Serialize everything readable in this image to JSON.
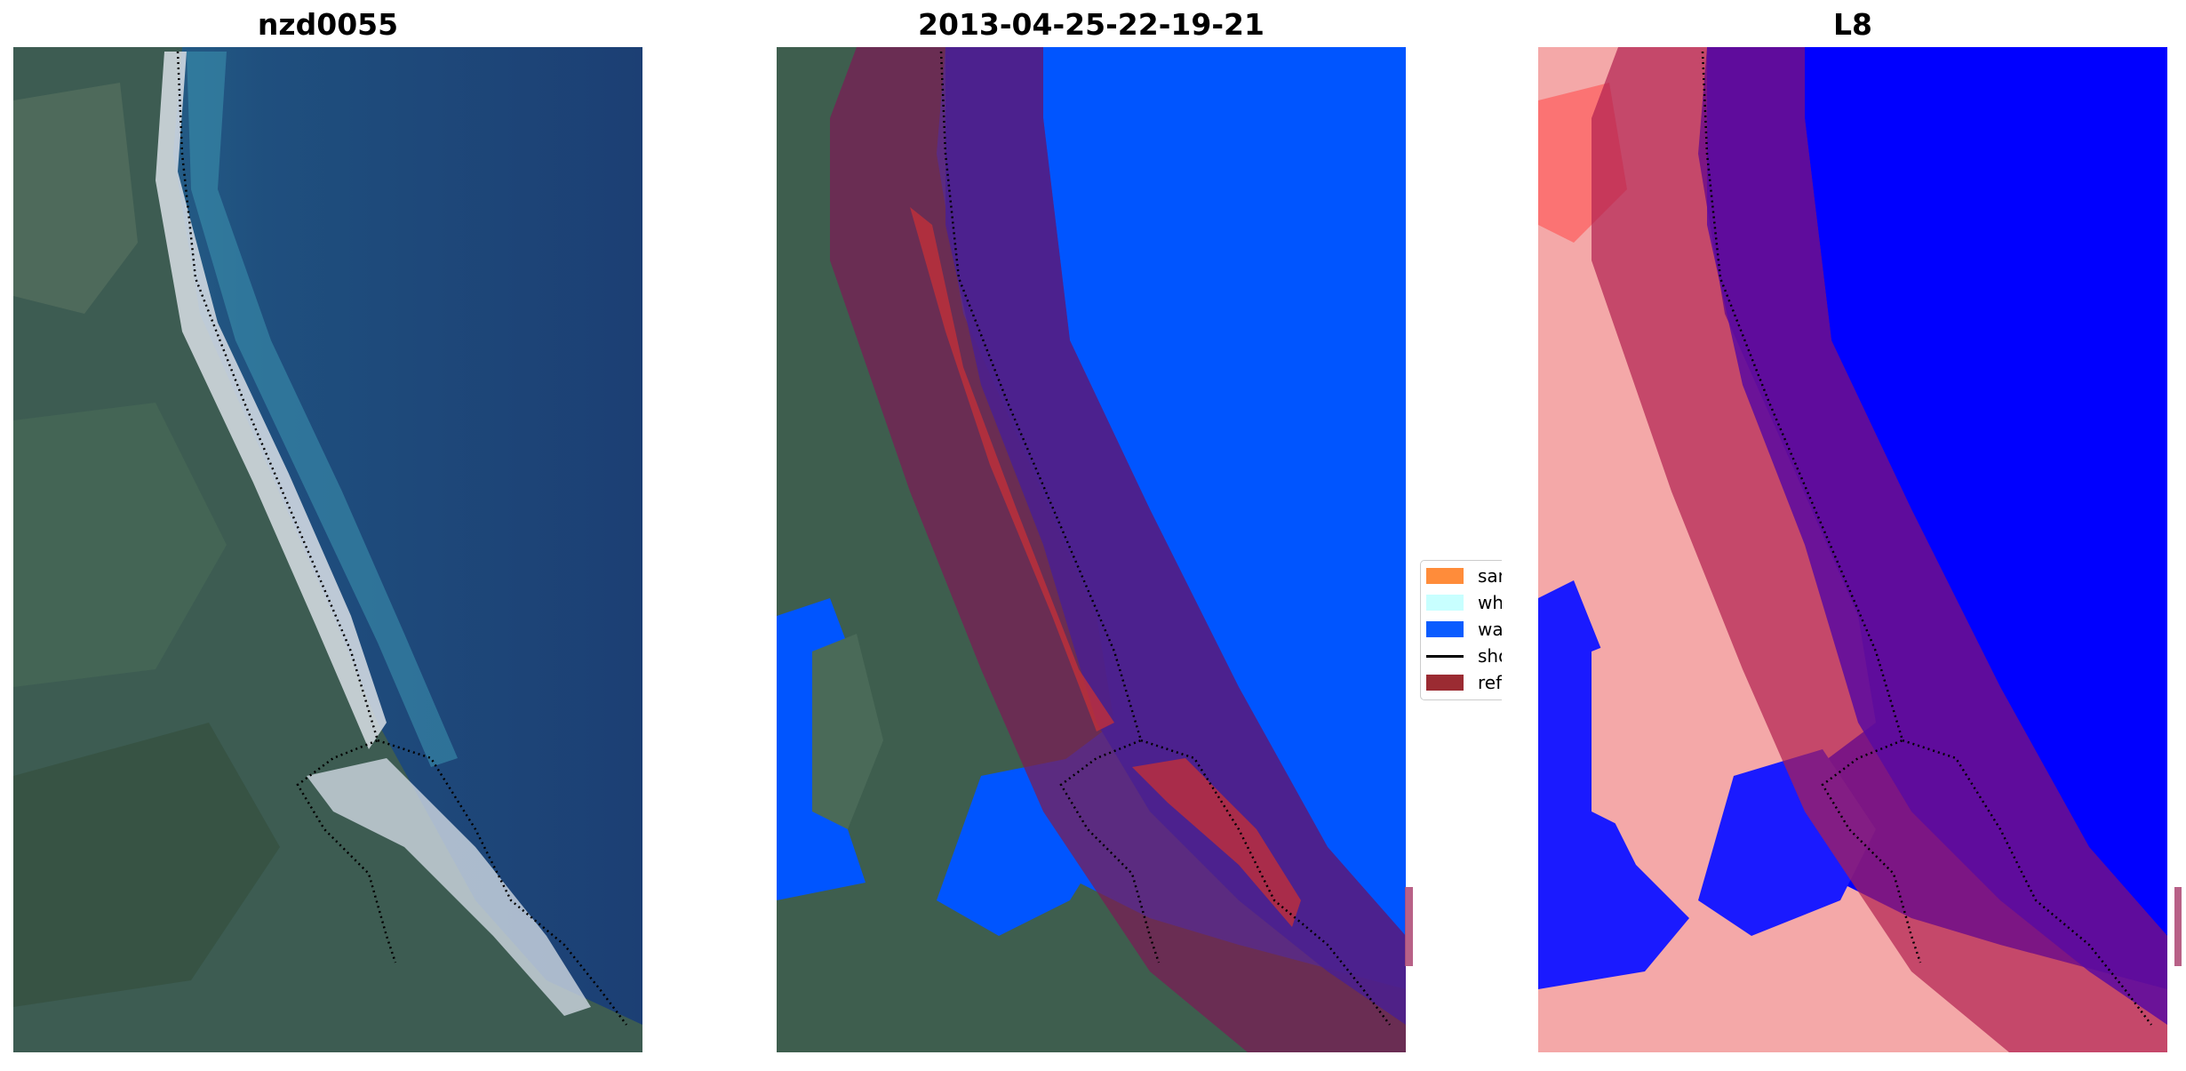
{
  "panels": [
    {
      "title": "nzd0055"
    },
    {
      "title": "2013-04-25-22-19-21"
    },
    {
      "title": "L8"
    }
  ],
  "legend": {
    "items": [
      {
        "label": "sand",
        "color": "#ff8c3a"
      },
      {
        "label": "whitewater",
        "color": "#c8ffff"
      },
      {
        "label": "water",
        "color": "#0a5cff"
      },
      {
        "label": "shoreline",
        "color": "#000000"
      },
      {
        "label": "reference",
        "color": "#9b2b32"
      }
    ]
  },
  "colors": {
    "ocean": "#1f4a7a",
    "land": "#3e5e4e",
    "classified_water": "#0055ff",
    "buffer_overlay": "#7a1e55",
    "index_water": "#0000ff",
    "index_land": "#f0a0a0"
  }
}
